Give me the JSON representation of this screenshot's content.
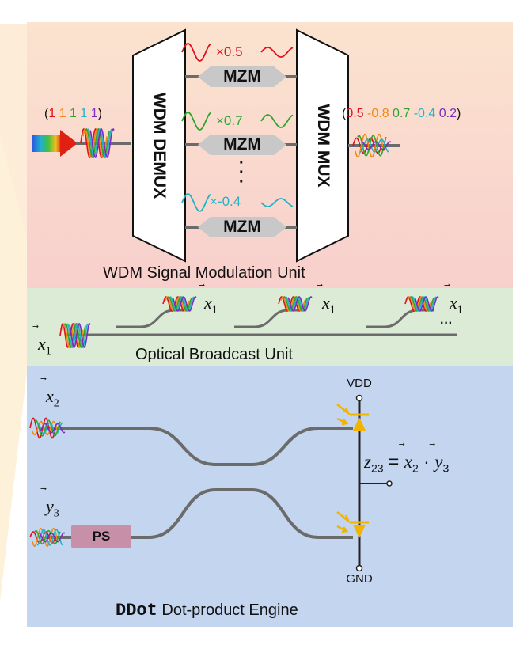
{
  "modulation": {
    "title": "WDM Signal Modulation Unit",
    "demux_label": "WDM DEMUX",
    "mux_label": "WDM MUX",
    "mzm_label": "MZM",
    "factors": [
      "×0.5",
      "×0.7",
      "×-0.4"
    ],
    "input_paren_open": "(",
    "input_paren_close": ")",
    "input_values": [
      "1",
      "1",
      "1",
      "1",
      "1"
    ],
    "output_values": [
      "0.5",
      "-0.8",
      "0.7",
      "-0.4",
      "0.2"
    ],
    "value_colors": [
      "#e0101c",
      "#f08a12",
      "#2fa52f",
      "#22b3c4",
      "#7a2cc4"
    ],
    "dots": "·"
  },
  "broadcast": {
    "title": "Optical Broadcast Unit",
    "vector_x1_base": "x",
    "vector_x1_sub": "1",
    "ellipsis": "···"
  },
  "ddot": {
    "title_code": "DDot",
    "title_text": "Dot-product Engine",
    "x2_base": "x",
    "x2_sub": "2",
    "y3_base": "y",
    "y3_sub": "3",
    "ps_label": "PS",
    "vdd_label": "VDD",
    "gnd_label": "GND",
    "output_z": "z",
    "output_z_sub": "23",
    "output_eq": "= ",
    "output_dot": "·"
  },
  "colors": {
    "modulation_bg": "#f9d8d0",
    "broadcast_bg": "#dcebd6",
    "ddot_bg": "#c4d6ef",
    "waveguide": "#6b6b6b",
    "mzm_fill": "#c8c8c8",
    "ps_fill": "#c890a8",
    "detector": "#f2b400"
  }
}
